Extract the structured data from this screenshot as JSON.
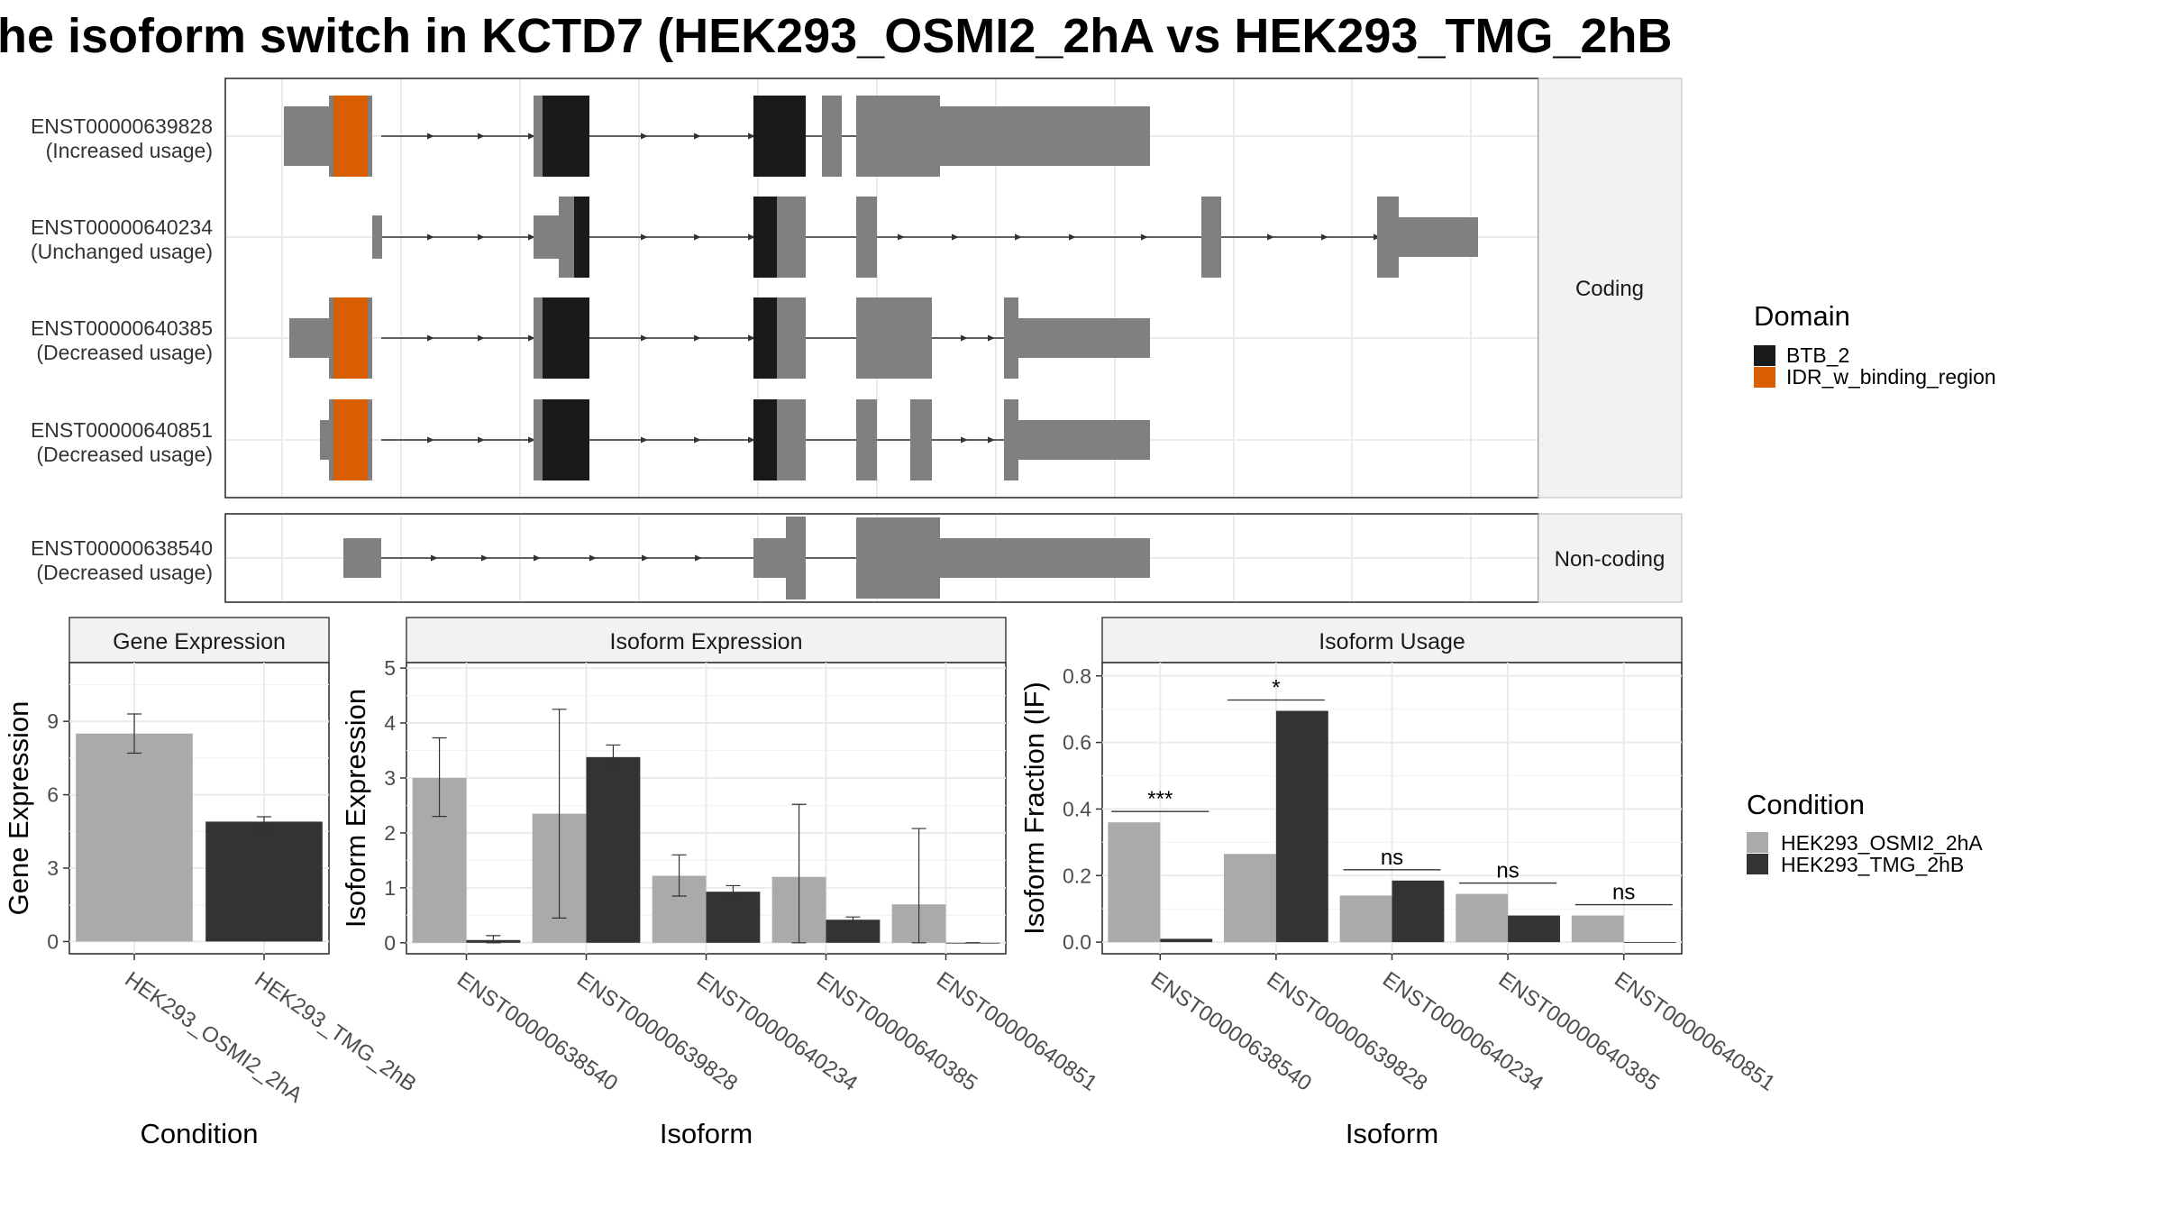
{
  "title": "he isoform switch in KCTD7 (HEK293_OSMI2_2hA vs HEK293_TMG_2hB",
  "colors": {
    "exon": "#808080",
    "BTB_2": "#1a1a1a",
    "IDR_w_binding_region": "#d95f02",
    "cond1": "#aaaaaa",
    "cond2": "#333333",
    "grid": "#ebebeb",
    "strip": "#f2f2f2"
  },
  "structure": {
    "coding_label": "Coding",
    "noncoding_label": "Non-coding",
    "transcripts": [
      {
        "id": "ENST00000639828",
        "usage": "(Increased usage)",
        "group": "Coding"
      },
      {
        "id": "ENST00000640234",
        "usage": "(Unchanged usage)",
        "group": "Coding"
      },
      {
        "id": "ENST00000640385",
        "usage": "(Decreased usage)",
        "group": "Coding"
      },
      {
        "id": "ENST00000640851",
        "usage": "(Decreased usage)",
        "group": "Coding"
      },
      {
        "id": "ENST00000638540",
        "usage": "(Decreased usage)",
        "group": "Non-coding"
      }
    ]
  },
  "legend_domain": {
    "title": "Domain",
    "items": [
      {
        "label": "BTB_2",
        "color": "#1a1a1a"
      },
      {
        "label": "IDR_w_binding_region",
        "color": "#d95f02"
      }
    ]
  },
  "legend_condition": {
    "title": "Condition",
    "items": [
      {
        "label": "HEK293_OSMI2_2hA",
        "color": "#aaaaaa"
      },
      {
        "label": "HEK293_TMG_2hB",
        "color": "#333333"
      }
    ]
  },
  "chart_data": [
    {
      "type": "bar",
      "strip": "Gene Expression",
      "xlabel": "Condition",
      "ylabel": "Gene Expression",
      "ylim": [
        -0.5,
        11.4
      ],
      "yticks": [
        0,
        3,
        6,
        9
      ],
      "categories": [
        "HEK293_OSMI2_2hA",
        "HEK293_TMG_2hB"
      ],
      "values": [
        8.5,
        4.9
      ],
      "errors": [
        [
          7.7,
          9.3
        ],
        [
          4.6,
          5.1
        ]
      ]
    },
    {
      "type": "bar",
      "strip": "Isoform Expression",
      "xlabel": "Isoform",
      "ylabel": "Isoform Expression",
      "ylim": [
        -0.2,
        5.1
      ],
      "yticks": [
        0,
        1,
        2,
        3,
        4,
        5
      ],
      "categories": [
        "ENST00000638540",
        "ENST00000639828",
        "ENST00000640234",
        "ENST00000640385",
        "ENST00000640851"
      ],
      "series": [
        {
          "name": "HEK293_OSMI2_2hA",
          "values": [
            3.0,
            2.35,
            1.22,
            1.2,
            0.7
          ],
          "errors": [
            [
              2.3,
              3.73
            ],
            [
              0.45,
              4.25
            ],
            [
              0.85,
              1.6
            ],
            [
              0.0,
              2.52
            ],
            [
              0.0,
              2.08
            ]
          ]
        },
        {
          "name": "HEK293_TMG_2hB",
          "values": [
            0.05,
            3.38,
            0.93,
            0.42,
            0.0
          ],
          "errors": [
            [
              0.0,
              0.13
            ],
            [
              3.15,
              3.6
            ],
            [
              0.83,
              1.04
            ],
            [
              0.38,
              0.47
            ],
            [
              0.0,
              0.0
            ]
          ]
        }
      ]
    },
    {
      "type": "bar",
      "strip": "Isoform Usage",
      "xlabel": "Isoform",
      "ylabel": "Isoform Fraction (IF)",
      "ylim": [
        -0.035,
        0.84
      ],
      "yticks": [
        "0.0",
        "0.2",
        "0.4",
        "0.6",
        "0.8"
      ],
      "categories": [
        "ENST00000638540",
        "ENST00000639828",
        "ENST00000640234",
        "ENST00000640385",
        "ENST00000640851"
      ],
      "series": [
        {
          "name": "HEK293_OSMI2_2hA",
          "values": [
            0.36,
            0.265,
            0.14,
            0.145,
            0.08
          ]
        },
        {
          "name": "HEK293_TMG_2hB",
          "values": [
            0.01,
            0.695,
            0.185,
            0.08,
            0.0
          ]
        }
      ],
      "significance": [
        "***",
        "*",
        "ns",
        "ns",
        "ns"
      ]
    }
  ]
}
